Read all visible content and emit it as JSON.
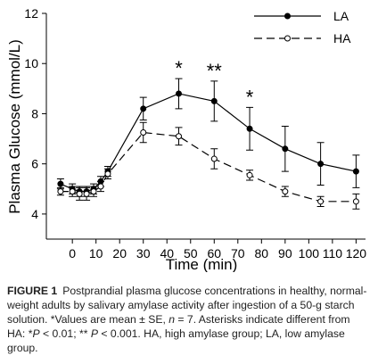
{
  "chart_data": {
    "type": "line",
    "xlabel": "Time (min)",
    "ylabel": "Plasma Glucose (mmol/L)",
    "x": [
      -5,
      0,
      3,
      6,
      9,
      12,
      15,
      30,
      45,
      60,
      75,
      90,
      105,
      120
    ],
    "series": [
      {
        "name": "LA",
        "color": "#000000",
        "marker": "filled",
        "dashed": false,
        "values": [
          5.2,
          5.0,
          4.9,
          4.9,
          5.0,
          5.3,
          5.7,
          8.2,
          8.8,
          8.5,
          7.4,
          6.6,
          6.0,
          5.7
        ],
        "errors": [
          0.2,
          0.2,
          0.2,
          0.2,
          0.2,
          0.2,
          0.2,
          0.45,
          0.6,
          0.8,
          0.85,
          0.9,
          0.85,
          0.65
        ]
      },
      {
        "name": "HA",
        "color": "#000000",
        "marker": "open",
        "dashed": true,
        "values": [
          4.9,
          4.9,
          4.8,
          4.8,
          4.9,
          5.1,
          5.6,
          7.25,
          7.1,
          6.2,
          5.55,
          4.9,
          4.5,
          4.5
        ],
        "errors": [
          0.15,
          0.2,
          0.25,
          0.25,
          0.2,
          0.2,
          0.2,
          0.4,
          0.35,
          0.4,
          0.2,
          0.2,
          0.2,
          0.3
        ]
      }
    ],
    "annotations": [
      {
        "text": "*",
        "x": 45
      },
      {
        "text": "**",
        "x": 60
      },
      {
        "text": "*",
        "x": 75
      }
    ],
    "xlim": [
      -11,
      124
    ],
    "ylim": [
      3,
      12
    ],
    "xticks": [
      0,
      10,
      20,
      30,
      40,
      50,
      60,
      70,
      80,
      90,
      100,
      110,
      120
    ],
    "yticks": [
      4,
      6,
      8,
      10,
      12
    ],
    "legend": "upper right"
  },
  "caption": {
    "label": "FIGURE 1",
    "segments": [
      {
        "text": "Postprandial plasma glucose concentrations in healthy, normal-weight adults by salivary amylase activity after ingestion of a 50-g starch solution. *Values are mean ± SE, ",
        "style": "normal"
      },
      {
        "text": "n",
        "style": "italic"
      },
      {
        "text": " = 7. Asterisks indicate different from HA: *",
        "style": "normal"
      },
      {
        "text": "P",
        "style": "italic"
      },
      {
        "text": " < 0.01; ** ",
        "style": "normal"
      },
      {
        "text": "P",
        "style": "italic"
      },
      {
        "text": " < 0.001. HA, high amylase group; LA, low amylase group.",
        "style": "normal"
      }
    ]
  }
}
